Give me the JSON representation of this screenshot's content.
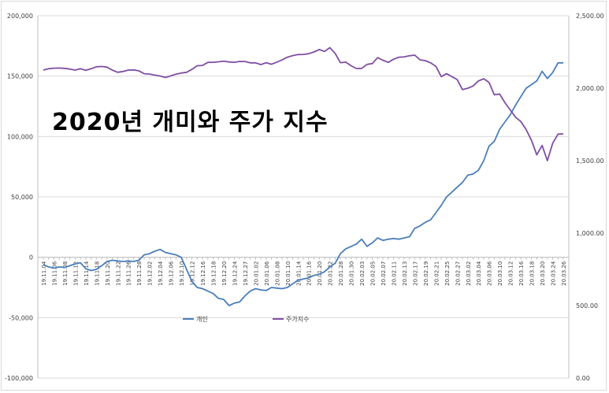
{
  "chart_data": {
    "type": "line",
    "title": "2020년 개미와 주가 지수",
    "x": [
      "19.11.04",
      "19.11.05",
      "19.11.06",
      "19.11.07",
      "19.11.08",
      "19.11.11",
      "19.11.12",
      "19.11.13",
      "19.11.14",
      "19.11.15",
      "19.11.18",
      "19.11.19",
      "19.11.20",
      "19.11.21",
      "19.11.22",
      "19.11.25",
      "19.11.26",
      "19.11.27",
      "19.11.28",
      "19.11.29",
      "19.12.02",
      "19.12.03",
      "19.12.04",
      "19.12.05",
      "19.12.06",
      "19.12.09",
      "19.12.10",
      "19.12.11",
      "19.12.12",
      "19.12.13",
      "19.12.16",
      "19.12.17",
      "19.12.18",
      "19.12.19",
      "19.12.20",
      "19.12.23",
      "19.12.24",
      "19.12.26",
      "19.12.27",
      "19.12.30",
      "20.01.02",
      "20.01.03",
      "20.01.06",
      "20.01.07",
      "20.01.08",
      "20.01.09",
      "20.01.10",
      "20.01.13",
      "20.01.14",
      "20.01.15",
      "20.01.16",
      "20.01.17",
      "20.01.20",
      "20.01.21",
      "20.01.22",
      "20.01.23",
      "20.01.28",
      "20.01.29",
      "20.01.30",
      "20.01.31",
      "20.02.03",
      "20.02.04",
      "20.02.05",
      "20.02.06",
      "20.02.07",
      "20.02.10",
      "20.02.11",
      "20.02.12",
      "20.02.13",
      "20.02.14",
      "20.02.17",
      "20.02.18",
      "20.02.19",
      "20.02.20",
      "20.02.21",
      "20.02.24",
      "20.02.25",
      "20.02.26",
      "20.02.27",
      "20.02.28",
      "20.03.02",
      "20.03.03",
      "20.03.04",
      "20.03.05",
      "20.03.06",
      "20.03.09",
      "20.03.10",
      "20.03.11",
      "20.03.12",
      "20.03.13",
      "20.03.16",
      "20.03.17",
      "20.03.18",
      "20.03.19",
      "20.03.20",
      "20.03.23",
      "20.03.24",
      "20.03.25",
      "20.03.26"
    ],
    "x_tick_labels": [
      "19.11.04",
      "19.11.06",
      "19.11.08",
      "19.11.12",
      "19.11.14",
      "19.11.18",
      "19.11.20",
      "19.11.22",
      "19.11.26",
      "19.11.28",
      "19.12.02",
      "19.12.04",
      "19.12.06",
      "19.12.10",
      "19.12.12",
      "19.12.16",
      "19.12.18",
      "19.12.20",
      "19.12.24",
      "19.12.27",
      "20.01.02",
      "20.01.06",
      "20.01.08",
      "20.01.10",
      "20.01.14",
      "20.01.16",
      "20.01.20",
      "20.01.22",
      "20.01.28",
      "20.01.30",
      "20.02.03",
      "20.02.05",
      "20.02.07",
      "20.02.11",
      "20.02.13",
      "20.02.17",
      "20.02.19",
      "20.02.21",
      "20.02.25",
      "20.02.27",
      "20.03.02",
      "20.03.04",
      "20.03.06",
      "20.03.10",
      "20.03.12",
      "20.03.16",
      "20.03.18",
      "20.03.20",
      "20.03.24",
      "20.03.26"
    ],
    "series": [
      {
        "name": "개인",
        "axis": "left",
        "color": "#4a7ebb",
        "values": [
          -6000,
          -8000,
          -9000,
          -8000,
          -8500,
          -7000,
          -5500,
          -4500,
          -9500,
          -11000,
          -10000,
          -7000,
          -3500,
          -2500,
          -3000,
          -3500,
          -3000,
          -3500,
          -2500,
          2000,
          3000,
          5000,
          6500,
          4000,
          3000,
          2000,
          0,
          -10000,
          -20000,
          -25000,
          -26000,
          -28000,
          -30000,
          -34000,
          -35000,
          -40000,
          -38000,
          -37000,
          -32000,
          -28000,
          -26000,
          -27000,
          -27500,
          -25000,
          -25500,
          -26000,
          -25000,
          -22000,
          -19000,
          -18000,
          -17000,
          -15000,
          -14000,
          -12000,
          -8000,
          -5000,
          3000,
          7000,
          9000,
          11000,
          15000,
          9000,
          12000,
          16000,
          14000,
          15000,
          15500,
          15000,
          16000,
          17000,
          24000,
          26000,
          29000,
          31000,
          37000,
          43000,
          50000,
          54000,
          58000,
          62000,
          68000,
          69000,
          72000,
          80000,
          92000,
          96000,
          106000,
          112000,
          118000,
          126000,
          133000,
          140000,
          143000,
          146000,
          154000,
          148000,
          153000,
          161000,
          161000
        ]
      },
      {
        "name": "주가지수",
        "axis": "right",
        "color": "#7f4fa3",
        "values": [
          2125,
          2135,
          2138,
          2139,
          2137,
          2132,
          2125,
          2135,
          2124,
          2134,
          2148,
          2150,
          2145,
          2125,
          2110,
          2115,
          2125,
          2126,
          2120,
          2100,
          2098,
          2090,
          2084,
          2074,
          2085,
          2097,
          2105,
          2110,
          2130,
          2155,
          2157,
          2178,
          2179,
          2182,
          2187,
          2181,
          2179,
          2185,
          2184,
          2175,
          2175,
          2163,
          2176,
          2165,
          2180,
          2195,
          2214,
          2225,
          2232,
          2233,
          2238,
          2250,
          2267,
          2254,
          2280,
          2240,
          2176,
          2180,
          2155,
          2136,
          2137,
          2164,
          2170,
          2211,
          2193,
          2178,
          2200,
          2214,
          2216,
          2224,
          2228,
          2195,
          2190,
          2175,
          2150,
          2080,
          2100,
          2080,
          2060,
          1990,
          2000,
          2015,
          2050,
          2065,
          2040,
          1955,
          1960,
          1900,
          1850,
          1800,
          1770,
          1714,
          1640,
          1540,
          1605,
          1500,
          1620,
          1683,
          1685
        ]
      }
    ],
    "y_left": {
      "min": -100000,
      "max": 200000,
      "step": 50000,
      "tick_labels": [
        "-100,000",
        "-50,000",
        "0",
        "50,000",
        "100,000",
        "150,000",
        "200,000"
      ]
    },
    "y_right": {
      "min": 0,
      "max": 2500,
      "step": 500,
      "tick_labels": [
        "0.00",
        "500.00",
        "1,000.00",
        "1,500.00",
        "2,000.00",
        "2,500.00"
      ]
    },
    "legend": [
      "개인",
      "주가지수"
    ],
    "legend_position": "inside-bottom-center",
    "grid": true,
    "xlabel": "",
    "ylabel": "",
    "y2label": ""
  }
}
